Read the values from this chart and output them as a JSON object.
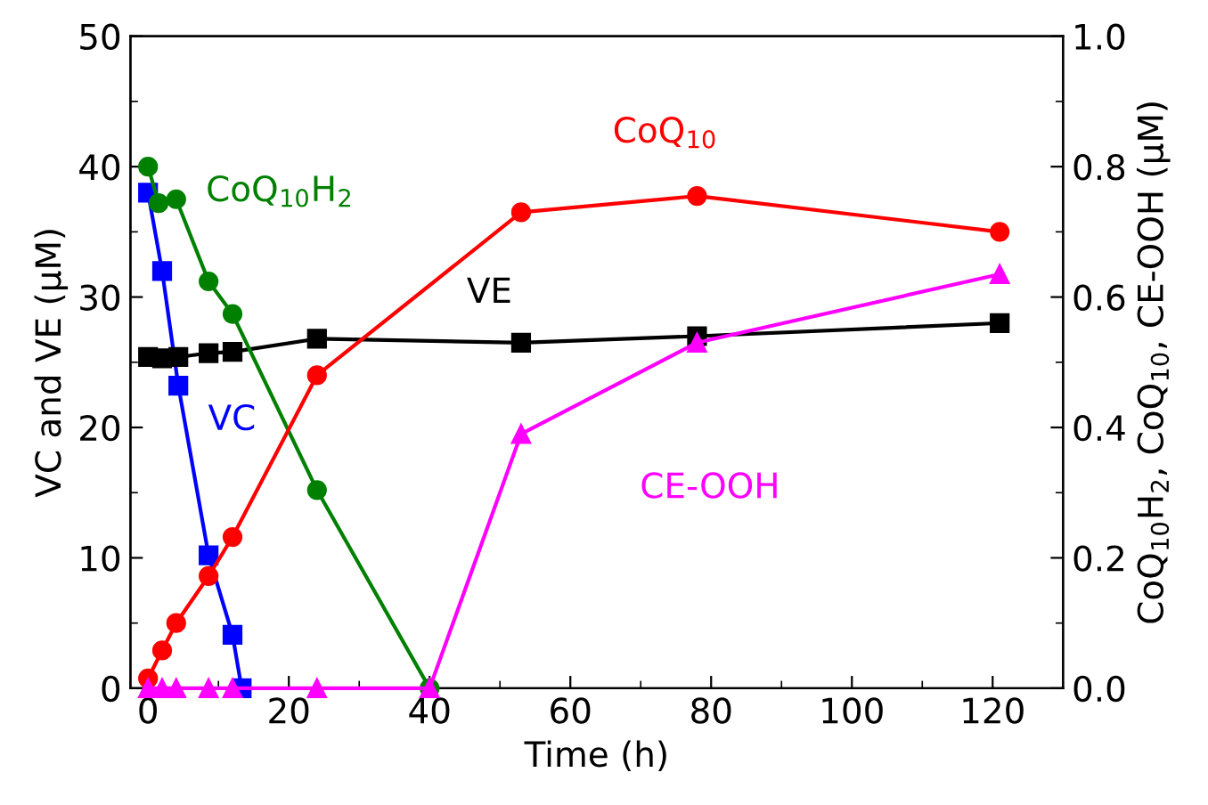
{
  "chart_data": {
    "type": "line",
    "xlabel": "Time (h)",
    "ylabel": "VC and VE (μM)",
    "y2label": "CoQ$_{10}$H$_{2}$, CoQ$_{10}$, CE-OOH (μM)",
    "xlim": [
      -2.5,
      130
    ],
    "xticks": [
      0,
      20,
      40,
      60,
      80,
      100,
      120
    ],
    "ylim": [
      0,
      50
    ],
    "yticks": [
      0,
      10,
      20,
      30,
      40,
      50
    ],
    "y2lim": [
      0,
      1
    ],
    "y2ticks": [
      {
        "value": 0,
        "label": "0.0"
      },
      {
        "value": 0.2,
        "label": "0.2"
      },
      {
        "value": 0.4,
        "label": "0.4"
      },
      {
        "value": 0.6,
        "label": "0.6"
      },
      {
        "value": 0.8,
        "label": "0.8"
      },
      {
        "value": 1,
        "label": "1.0"
      }
    ],
    "grid": false,
    "legend": false,
    "line_style": "solid",
    "series": [
      {
        "name": "VC",
        "color": "#0000ff",
        "marker": "square",
        "x": [
          0,
          2,
          4.3,
          8.6,
          12,
          13.3
        ],
        "values": [
          38,
          32,
          23.2,
          10.2,
          4.1,
          0
        ]
      },
      {
        "name": "VE",
        "color": "#000000",
        "marker": "square",
        "x": [
          0,
          2,
          4.3,
          8.6,
          12,
          24,
          53,
          78,
          121
        ],
        "values": [
          25.4,
          25.3,
          25.4,
          25.7,
          25.8,
          26.8,
          26.5,
          27,
          28
        ]
      },
      {
        "name": "CoQ$_{10}$H$_{2}$",
        "color": "#008000",
        "marker": "circle",
        "axis": "y2",
        "x": [
          0,
          1.5,
          4,
          8.6,
          12,
          24,
          40
        ],
        "values": [
          0.8,
          0.744,
          0.75,
          0.624,
          0.574,
          0.304,
          0
        ]
      },
      {
        "name": "CoQ$_{10}$",
        "color": "#ff0000",
        "marker": "circle",
        "axis": "y2",
        "x": [
          0,
          2,
          4,
          8.6,
          12,
          24,
          53,
          78,
          121
        ],
        "values": [
          0.015,
          0.058,
          0.1,
          0.172,
          0.232,
          0.48,
          0.73,
          0.755,
          0.7
        ]
      },
      {
        "name": "CE-OOH",
        "color": "#ff00ff",
        "marker": "triangle",
        "axis": "y2",
        "x": [
          0,
          2,
          4,
          8.6,
          12,
          24,
          40,
          53,
          78,
          121
        ],
        "values": [
          0,
          0,
          0,
          0,
          0,
          0,
          0,
          0.39,
          0.53,
          0.635
        ]
      }
    ]
  }
}
